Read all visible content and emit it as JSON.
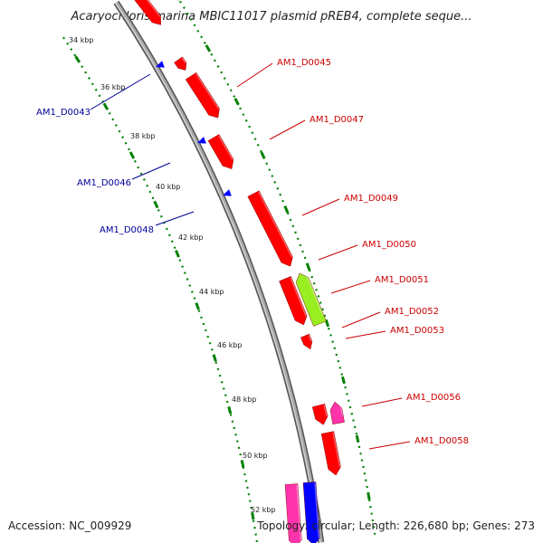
{
  "title": "Acaryochloris marina MBIC11017 plasmid pREB4, complete seque...",
  "accession": "Accession: NC_009929",
  "summary": "Topology: circular; Length: 226,680 bp; Genes: 273",
  "colors": {
    "forward_gene": "#ff0000",
    "reverse_gene": "#0000ff",
    "magenta_gene": "#ff33aa",
    "green_gene": "#99ee22",
    "tick_dots": "#008000",
    "label_forward": "#cc0000",
    "label_reverse": "#000099"
  },
  "ticks": [
    "34 kbp",
    "36 kbp",
    "38 kbp",
    "40 kbp",
    "42 kbp",
    "44 kbp",
    "46 kbp",
    "48 kbp",
    "50 kbp",
    "52 kbp"
  ],
  "labels_forward": [
    "AM1_D0045",
    "AM1_D0047",
    "AM1_D0049",
    "AM1_D0050",
    "AM1_D0051",
    "AM1_D0052",
    "AM1_D0053",
    "AM1_D0056",
    "AM1_D0058"
  ],
  "labels_reverse": [
    "AM1_D0043",
    "AM1_D0046",
    "AM1_D0048"
  ]
}
